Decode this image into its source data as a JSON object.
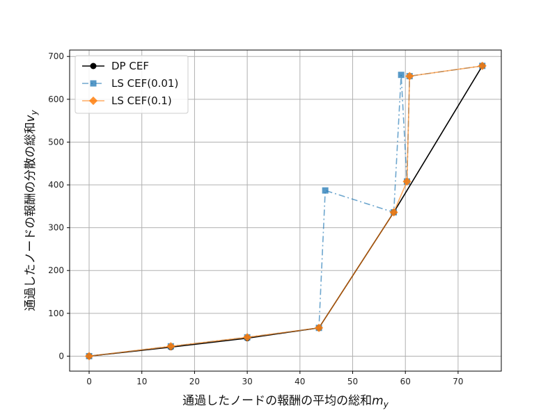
{
  "chart_data": {
    "type": "line",
    "title": "",
    "xlabel": "通過したノードの報酬の平均の総和m_y",
    "ylabel": "通過したノードの報酬の分散の総和v_y",
    "xlim": [
      -3.7,
      78.2
    ],
    "ylim": [
      -35,
      715
    ],
    "x_ticks": [
      0,
      10,
      20,
      30,
      40,
      50,
      60,
      70
    ],
    "y_ticks": [
      0,
      100,
      200,
      300,
      400,
      500,
      600,
      700
    ],
    "grid": true,
    "legend_position": "top-left",
    "series": [
      {
        "name": "DP CEF",
        "color": "#000000",
        "marker": "circle",
        "line_style": "solid",
        "points": [
          [
            0,
            0
          ],
          [
            15.5,
            21
          ],
          [
            30,
            42
          ],
          [
            43.6,
            66
          ],
          [
            57.8,
            336
          ],
          [
            74.6,
            678
          ]
        ]
      },
      {
        "name": "LS CEF(0.01)",
        "color": "#1f77b4",
        "marker": "square",
        "line_style": "dashdot",
        "points": [
          [
            0,
            0
          ],
          [
            15.5,
            23
          ],
          [
            30,
            44
          ],
          [
            43.6,
            66
          ],
          [
            44.8,
            387
          ],
          [
            57.8,
            336
          ],
          [
            59.2,
            657
          ],
          [
            60.3,
            408
          ],
          [
            60.8,
            654
          ],
          [
            74.6,
            678
          ]
        ]
      },
      {
        "name": "LS CEF(0.1)",
        "color": "#ff7f0e",
        "marker": "diamond",
        "line_style": "solid",
        "points": [
          [
            0,
            0
          ],
          [
            15.5,
            23
          ],
          [
            30,
            44
          ],
          [
            43.6,
            66
          ],
          [
            57.8,
            336
          ],
          [
            60.3,
            408
          ],
          [
            60.8,
            654
          ],
          [
            74.6,
            678
          ]
        ]
      }
    ]
  }
}
